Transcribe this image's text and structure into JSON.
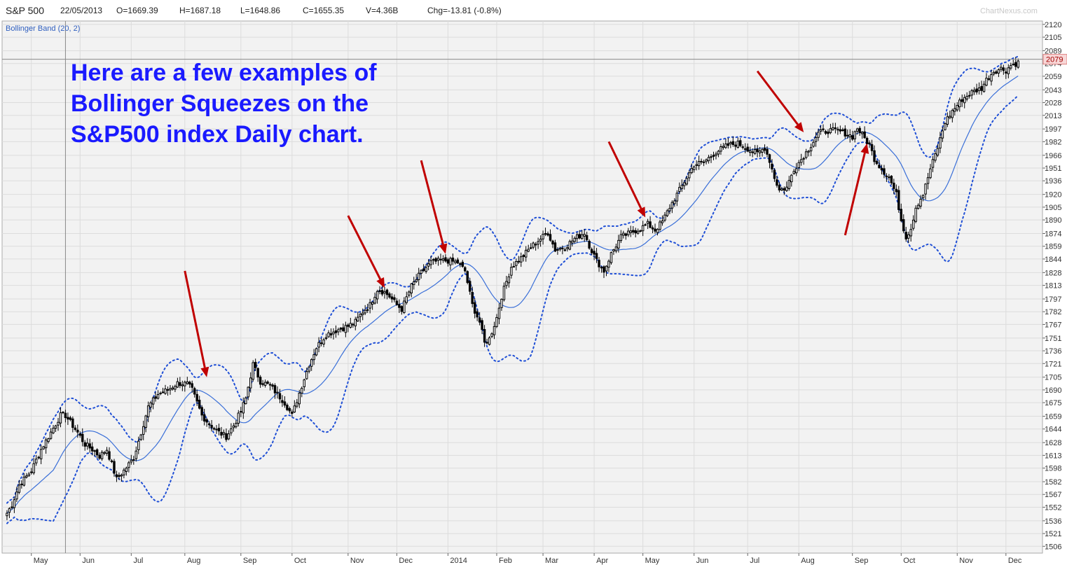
{
  "header": {
    "symbol": "S&P 500",
    "date": "22/05/2013",
    "open": "O=1669.39",
    "high": "H=1687.18",
    "low": "L=1648.86",
    "close": "C=1655.35",
    "volume": "V=4.36B",
    "change": "Chg=-13.81 (-0.8%)",
    "watermark": "ChartNexus.com"
  },
  "indicator_label": "Bollinger Band (20, 2)",
  "annotation_lines": [
    "Here are a few examples of",
    "Bollinger Squeezes on the",
    "S&P500 index Daily chart."
  ],
  "last_price_label": "2079",
  "colors": {
    "annotation_text": "#1a1aff",
    "arrows": "#c00000",
    "bands": "#1f4fd6",
    "middle_band": "#3a6fd8",
    "candle": "#000000"
  },
  "chart_data": {
    "type": "candlestick",
    "title": "",
    "y_ticks": [
      "2120",
      "2105",
      "2089",
      "2074",
      "2059",
      "2043",
      "2028",
      "2013",
      "1997",
      "1982",
      "1966",
      "1951",
      "1936",
      "1920",
      "1905",
      "1890",
      "1874",
      "1859",
      "1844",
      "1828",
      "1813",
      "1797",
      "1782",
      "1767",
      "1751",
      "1736",
      "1721",
      "1705",
      "1690",
      "1675",
      "1659",
      "1644",
      "1628",
      "1613",
      "1598",
      "1582",
      "1567",
      "1552",
      "1536",
      "1521",
      "1506"
    ],
    "ylim": [
      1498,
      2124
    ],
    "x_labels": [
      "May",
      "Jun",
      "Jul",
      "Aug",
      "Sep",
      "Oct",
      "Nov",
      "Dec",
      "2014",
      "Feb",
      "Mar",
      "Apr",
      "May",
      "Jun",
      "Jul",
      "Aug",
      "Sep",
      "Oct",
      "Nov",
      "Dec"
    ],
    "x_label_days": [
      0,
      20,
      41,
      63,
      86,
      107,
      130,
      150,
      171,
      191,
      210,
      231,
      251,
      272,
      294,
      315,
      337,
      357,
      380,
      400
    ],
    "x_range_days": [
      -12,
      415
    ],
    "crosshair_day": 14,
    "last_price": 2079,
    "close_anchors": [
      [
        -10,
        1545
      ],
      [
        -8,
        1555
      ],
      [
        -5,
        1578
      ],
      [
        0,
        1595
      ],
      [
        4,
        1620
      ],
      [
        8,
        1640
      ],
      [
        12,
        1660
      ],
      [
        14,
        1660
      ],
      [
        16,
        1652
      ],
      [
        19,
        1640
      ],
      [
        22,
        1626
      ],
      [
        25,
        1620
      ],
      [
        28,
        1612
      ],
      [
        31,
        1620
      ],
      [
        35,
        1585
      ],
      [
        38,
        1595
      ],
      [
        42,
        1610
      ],
      [
        45,
        1640
      ],
      [
        48,
        1670
      ],
      [
        52,
        1685
      ],
      [
        56,
        1690
      ],
      [
        60,
        1698
      ],
      [
        64,
        1697
      ],
      [
        66,
        1690
      ],
      [
        70,
        1660
      ],
      [
        73,
        1650
      ],
      [
        77,
        1640
      ],
      [
        80,
        1635
      ],
      [
        83,
        1648
      ],
      [
        86,
        1665
      ],
      [
        88,
        1680
      ],
      [
        91,
        1720
      ],
      [
        94,
        1700
      ],
      [
        98,
        1695
      ],
      [
        101,
        1685
      ],
      [
        104,
        1675
      ],
      [
        107,
        1660
      ],
      [
        111,
        1695
      ],
      [
        114,
        1720
      ],
      [
        117,
        1740
      ],
      [
        121,
        1755
      ],
      [
        125,
        1760
      ],
      [
        130,
        1765
      ],
      [
        133,
        1770
      ],
      [
        136,
        1782
      ],
      [
        139,
        1790
      ],
      [
        142,
        1808
      ],
      [
        145,
        1805
      ],
      [
        147,
        1800
      ],
      [
        150,
        1790
      ],
      [
        152,
        1785
      ],
      [
        156,
        1812
      ],
      [
        160,
        1828
      ],
      [
        164,
        1840
      ],
      [
        168,
        1842
      ],
      [
        171,
        1842
      ],
      [
        175,
        1840
      ],
      [
        178,
        1830
      ],
      [
        181,
        1790
      ],
      [
        184,
        1770
      ],
      [
        186,
        1745
      ],
      [
        188,
        1750
      ],
      [
        191,
        1775
      ],
      [
        193,
        1800
      ],
      [
        197,
        1835
      ],
      [
        201,
        1845
      ],
      [
        205,
        1858
      ],
      [
        209,
        1868
      ],
      [
        212,
        1875
      ],
      [
        215,
        1855
      ],
      [
        219,
        1858
      ],
      [
        223,
        1868
      ],
      [
        227,
        1875
      ],
      [
        229,
        1860
      ],
      [
        232,
        1842
      ],
      [
        235,
        1830
      ],
      [
        238,
        1850
      ],
      [
        242,
        1870
      ],
      [
        246,
        1875
      ],
      [
        250,
        1880
      ],
      [
        253,
        1885
      ],
      [
        256,
        1878
      ],
      [
        259,
        1888
      ],
      [
        262,
        1905
      ],
      [
        265,
        1920
      ],
      [
        269,
        1940
      ],
      [
        272,
        1955
      ],
      [
        276,
        1958
      ],
      [
        281,
        1970
      ],
      [
        286,
        1978
      ],
      [
        290,
        1980
      ],
      [
        294,
        1974
      ],
      [
        298,
        1968
      ],
      [
        301,
        1975
      ],
      [
        303,
        1960
      ],
      [
        305,
        1940
      ],
      [
        307,
        1925
      ],
      [
        310,
        1928
      ],
      [
        313,
        1950
      ],
      [
        317,
        1965
      ],
      [
        320,
        1978
      ],
      [
        323,
        1992
      ],
      [
        327,
        1995
      ],
      [
        331,
        1995
      ],
      [
        334,
        1992
      ],
      [
        337,
        1988
      ],
      [
        339,
        1998
      ],
      [
        341,
        1990
      ],
      [
        344,
        1978
      ],
      [
        346,
        1962
      ],
      [
        349,
        1950
      ],
      [
        352,
        1940
      ],
      [
        355,
        1920
      ],
      [
        357,
        1890
      ],
      [
        359,
        1870
      ],
      [
        361,
        1880
      ],
      [
        363,
        1905
      ],
      [
        366,
        1920
      ],
      [
        369,
        1950
      ],
      [
        372,
        1975
      ],
      [
        375,
        2005
      ],
      [
        378,
        2018
      ],
      [
        382,
        2032
      ],
      [
        386,
        2040
      ],
      [
        390,
        2045
      ],
      [
        392,
        2055
      ],
      [
        395,
        2065
      ],
      [
        398,
        2068
      ],
      [
        400,
        2066
      ],
      [
        402,
        2072
      ],
      [
        405,
        2075
      ]
    ],
    "arrows": [
      {
        "from": [
          63,
          1830
        ],
        "to": [
          72,
          1705
        ]
      },
      {
        "from": [
          130,
          1895
        ],
        "to": [
          145,
          1810
        ]
      },
      {
        "from": [
          160,
          1960
        ],
        "to": [
          170,
          1850
        ]
      },
      {
        "from": [
          237,
          1982
        ],
        "to": [
          252,
          1893
        ]
      },
      {
        "from": [
          298,
          2065
        ],
        "to": [
          317,
          1993
        ]
      },
      {
        "from": [
          334,
          1872
        ],
        "to": [
          343,
          1980
        ]
      }
    ]
  }
}
